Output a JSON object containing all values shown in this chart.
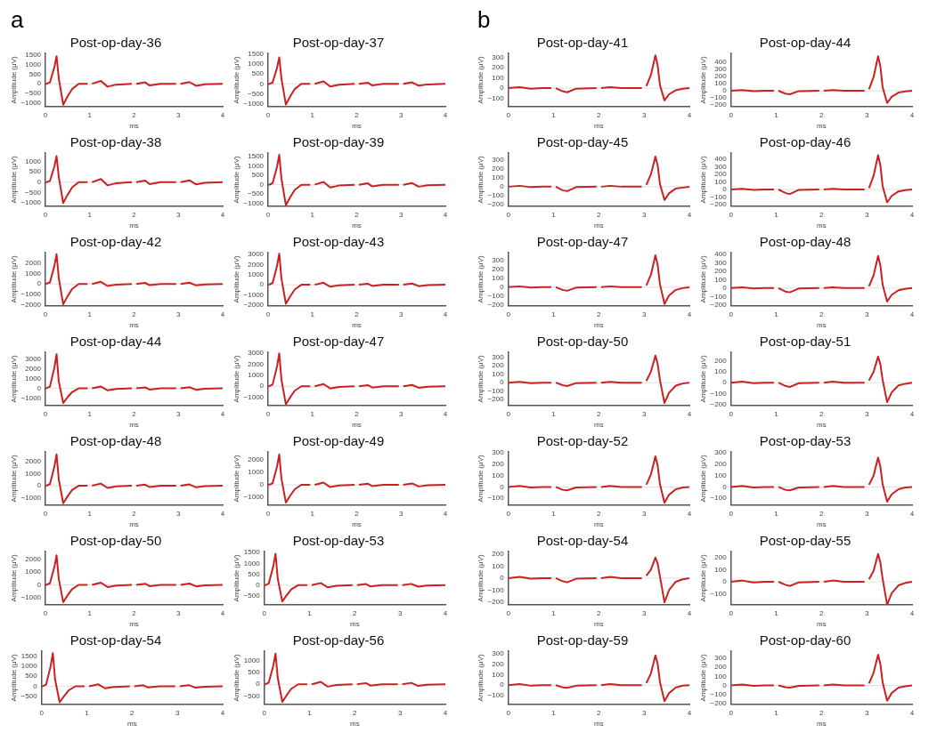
{
  "chart_data": [
    {
      "type": "line",
      "title": "Post-op-day-36",
      "annotations": [
        "a"
      ],
      "xlabel": "ms",
      "ylabel": "Amplitude (μV)",
      "color": "#cc2020",
      "xlim": [
        0,
        4
      ],
      "xticks": [
        0,
        1,
        2,
        3,
        4
      ],
      "ylim": [
        -1200,
        1600
      ],
      "yticks": [
        -1000,
        -500,
        0,
        500,
        1000,
        1500
      ],
      "ref_lines": [
        {
          "axis": "y",
          "value": 0,
          "color": "#e0e0e0"
        }
      ],
      "grid": false,
      "x": [
        0,
        0.1,
        0.2,
        0.25,
        0.3,
        0.4,
        0.5,
        0.6,
        0.75,
        0.95,
        1,
        1.05,
        1.25,
        1.4,
        1.6,
        1.95,
        2,
        2.05,
        2.25,
        2.35,
        2.6,
        2.95,
        3,
        3.05,
        3.25,
        3.4,
        3.6,
        4
      ],
      "values": [
        -20,
        70,
        870,
        1450,
        290,
        -1100,
        -660,
        -280,
        0,
        0,
        null,
        0,
        150,
        -150,
        -45,
        0,
        null,
        0,
        75,
        -90,
        0,
        0,
        null,
        0,
        90,
        -105,
        -30,
        0
      ]
    },
    {
      "type": "line",
      "title": "Post-op-day-37",
      "xlabel": "ms",
      "ylabel": "Amplitude (μV)",
      "color": "#cc2020",
      "xlim": [
        0,
        4
      ],
      "xticks": [
        0,
        1,
        2,
        3,
        4
      ],
      "ylim": [
        -1150,
        1550
      ],
      "yticks": [
        -1000,
        -500,
        0,
        500,
        1000,
        1500
      ],
      "ref_lines": [
        {
          "axis": "y",
          "value": 0,
          "color": "#e0e0e0"
        }
      ],
      "grid": false,
      "x": [
        0,
        0.1,
        0.2,
        0.25,
        0.3,
        0.4,
        0.5,
        0.6,
        0.75,
        0.95,
        1,
        1.05,
        1.25,
        1.4,
        1.6,
        1.95,
        2,
        2.05,
        2.25,
        2.35,
        2.6,
        2.95,
        3,
        3.05,
        3.25,
        3.4,
        3.6,
        4
      ],
      "values": [
        -20,
        70,
        810,
        1350,
        270,
        -1050,
        -630,
        -260,
        0,
        0,
        null,
        0,
        130,
        -130,
        -40,
        0,
        null,
        0,
        65,
        -80,
        0,
        0,
        null,
        0,
        80,
        -90,
        -25,
        0
      ]
    },
    {
      "type": "line",
      "title": "Post-op-day-38",
      "xlabel": "ms",
      "ylabel": "Amplitude (μV)",
      "color": "#cc2020",
      "xlim": [
        0,
        4
      ],
      "xticks": [
        0,
        1,
        2,
        3,
        4
      ],
      "ylim": [
        -1150,
        1400
      ],
      "yticks": [
        -1000,
        -500,
        0,
        500,
        1000
      ],
      "ref_lines": [
        {
          "axis": "y",
          "value": 0,
          "color": "#e0e0e0"
        }
      ],
      "grid": false,
      "x": [
        0,
        0.1,
        0.2,
        0.25,
        0.3,
        0.4,
        0.5,
        0.6,
        0.75,
        0.95,
        1,
        1.05,
        1.25,
        1.4,
        1.6,
        1.95,
        2,
        2.05,
        2.25,
        2.35,
        2.6,
        2.95,
        3,
        3.05,
        3.25,
        3.4,
        3.6,
        4
      ],
      "values": [
        -20,
        60,
        750,
        1250,
        250,
        -1000,
        -600,
        -250,
        0,
        0,
        null,
        0,
        150,
        -150,
        -45,
        0,
        null,
        0,
        75,
        -90,
        0,
        0,
        null,
        0,
        90,
        -105,
        -30,
        0
      ]
    },
    {
      "type": "line",
      "title": "Post-op-day-39",
      "xlabel": "ms",
      "ylabel": "Amplitude (μV)",
      "color": "#cc2020",
      "xlim": [
        0,
        4
      ],
      "xticks": [
        0,
        1,
        2,
        3,
        4
      ],
      "ylim": [
        -1150,
        1700
      ],
      "yticks": [
        -1000,
        -500,
        0,
        500,
        1000,
        1500
      ],
      "ref_lines": [
        {
          "axis": "y",
          "value": 0,
          "color": "#e0e0e0"
        }
      ],
      "grid": false,
      "x": [
        0,
        0.1,
        0.2,
        0.25,
        0.3,
        0.4,
        0.5,
        0.6,
        0.75,
        0.95,
        1,
        1.05,
        1.25,
        1.4,
        1.6,
        1.95,
        2,
        2.05,
        2.25,
        2.35,
        2.6,
        2.95,
        3,
        3.05,
        3.25,
        3.4,
        3.6,
        4
      ],
      "values": [
        -20,
        80,
        960,
        1600,
        320,
        -1100,
        -660,
        -280,
        0,
        0,
        null,
        0,
        150,
        -150,
        -45,
        0,
        null,
        0,
        75,
        -90,
        0,
        0,
        null,
        0,
        90,
        -105,
        -30,
        0
      ]
    },
    {
      "type": "line",
      "title": "Post-op-day-42",
      "xlabel": "ms",
      "ylabel": "Amplitude (μV)",
      "color": "#cc2020",
      "xlim": [
        0,
        4
      ],
      "xticks": [
        0,
        1,
        2,
        3,
        4
      ],
      "ylim": [
        -2100,
        3000
      ],
      "yticks": [
        -2000,
        -1000,
        0,
        1000,
        2000
      ],
      "ref_lines": [
        {
          "axis": "y",
          "value": 0,
          "color": "#e0e0e0"
        }
      ],
      "grid": false,
      "x": [
        0,
        0.1,
        0.2,
        0.25,
        0.3,
        0.4,
        0.5,
        0.6,
        0.75,
        0.95,
        1,
        1.05,
        1.25,
        1.4,
        1.6,
        1.95,
        2,
        2.05,
        2.25,
        2.35,
        2.6,
        2.95,
        3,
        3.05,
        3.25,
        3.4,
        3.6,
        4
      ],
      "values": [
        -20,
        140,
        1710,
        2850,
        570,
        -1950,
        -1170,
        -490,
        0,
        0,
        null,
        0,
        200,
        -200,
        -60,
        0,
        null,
        0,
        100,
        -120,
        0,
        0,
        null,
        0,
        120,
        -140,
        -40,
        0
      ]
    },
    {
      "type": "line",
      "title": "Post-op-day-43",
      "xlabel": "ms",
      "ylabel": "Amplitude (μV)",
      "color": "#cc2020",
      "xlim": [
        0,
        4
      ],
      "xticks": [
        0,
        1,
        2,
        3,
        4
      ],
      "ylim": [
        -2100,
        3200
      ],
      "yticks": [
        -2000,
        -1000,
        0,
        1000,
        2000,
        3000
      ],
      "ref_lines": [
        {
          "axis": "y",
          "value": 0,
          "color": "#e0e0e0"
        }
      ],
      "grid": false,
      "x": [
        0,
        0.1,
        0.2,
        0.25,
        0.3,
        0.4,
        0.5,
        0.6,
        0.75,
        0.95,
        1,
        1.05,
        1.25,
        1.4,
        1.6,
        1.95,
        2,
        2.05,
        2.25,
        2.35,
        2.6,
        2.95,
        3,
        3.05,
        3.25,
        3.4,
        3.6,
        4
      ],
      "values": [
        -20,
        160,
        1860,
        3100,
        620,
        -1900,
        -1140,
        -480,
        0,
        0,
        null,
        0,
        200,
        -200,
        -60,
        0,
        null,
        0,
        100,
        -120,
        0,
        0,
        null,
        0,
        120,
        -140,
        -40,
        0
      ]
    },
    {
      "type": "line",
      "title": "Post-op-day-44",
      "xlabel": "ms",
      "ylabel": "Amplitude (μV)",
      "color": "#cc2020",
      "xlim": [
        0,
        4
      ],
      "xticks": [
        0,
        1,
        2,
        3,
        4
      ],
      "ylim": [
        -1750,
        3700
      ],
      "yticks": [
        -1000,
        0,
        1000,
        2000,
        3000
      ],
      "ref_lines": [
        {
          "axis": "y",
          "value": 0,
          "color": "#e0e0e0"
        }
      ],
      "grid": false,
      "x": [
        0,
        0.1,
        0.2,
        0.25,
        0.3,
        0.4,
        0.5,
        0.6,
        0.75,
        0.95,
        1,
        1.05,
        1.25,
        1.4,
        1.6,
        1.95,
        2,
        2.05,
        2.25,
        2.35,
        2.6,
        2.95,
        3,
        3.05,
        3.25,
        3.4,
        3.6,
        4
      ],
      "values": [
        -20,
        180,
        2100,
        3500,
        700,
        -1500,
        -900,
        -380,
        0,
        0,
        null,
        0,
        200,
        -200,
        -60,
        0,
        null,
        0,
        100,
        -120,
        0,
        0,
        null,
        0,
        120,
        -140,
        -40,
        0
      ]
    },
    {
      "type": "line",
      "title": "Post-op-day-47",
      "xlabel": "ms",
      "ylabel": "Amplitude (μV)",
      "color": "#cc2020",
      "xlim": [
        0,
        4
      ],
      "xticks": [
        0,
        1,
        2,
        3,
        4
      ],
      "ylim": [
        -1750,
        3100
      ],
      "yticks": [
        -1000,
        0,
        1000,
        2000,
        3000
      ],
      "ref_lines": [
        {
          "axis": "y",
          "value": 0,
          "color": "#e0e0e0"
        }
      ],
      "grid": false,
      "x": [
        0,
        0.1,
        0.2,
        0.25,
        0.3,
        0.4,
        0.5,
        0.6,
        0.75,
        0.95,
        1,
        1.05,
        1.25,
        1.4,
        1.6,
        1.95,
        2,
        2.05,
        2.25,
        2.35,
        2.6,
        2.95,
        3,
        3.05,
        3.25,
        3.4,
        3.6,
        4
      ],
      "values": [
        -20,
        150,
        1800,
        3000,
        600,
        -1650,
        -990,
        -410,
        0,
        0,
        null,
        0,
        200,
        -200,
        -60,
        0,
        null,
        0,
        100,
        -120,
        0,
        0,
        null,
        0,
        120,
        -140,
        -40,
        0
      ]
    },
    {
      "type": "line",
      "title": "Post-op-day-48",
      "xlabel": "ms",
      "ylabel": "Amplitude (μV)",
      "color": "#cc2020",
      "xlim": [
        0,
        4
      ],
      "xticks": [
        0,
        1,
        2,
        3,
        4
      ],
      "ylim": [
        -1600,
        2800
      ],
      "yticks": [
        -1000,
        0,
        1000,
        2000
      ],
      "ref_lines": [
        {
          "axis": "y",
          "value": 0,
          "color": "#e0e0e0"
        }
      ],
      "grid": false,
      "x": [
        0,
        0.1,
        0.2,
        0.25,
        0.3,
        0.4,
        0.5,
        0.6,
        0.75,
        0.95,
        1,
        1.05,
        1.25,
        1.4,
        1.6,
        1.95,
        2,
        2.05,
        2.25,
        2.35,
        2.6,
        2.95,
        3,
        3.05,
        3.25,
        3.4,
        3.6,
        4
      ],
      "values": [
        -20,
        130,
        1560,
        2600,
        520,
        -1450,
        -870,
        -360,
        0,
        0,
        null,
        0,
        180,
        -180,
        -50,
        0,
        null,
        0,
        90,
        -110,
        0,
        0,
        null,
        0,
        110,
        -130,
        -35,
        0
      ]
    },
    {
      "type": "line",
      "title": "Post-op-day-49",
      "xlabel": "ms",
      "ylabel": "Amplitude (μV)",
      "color": "#cc2020",
      "xlim": [
        0,
        4
      ],
      "xticks": [
        0,
        1,
        2,
        3,
        4
      ],
      "ylim": [
        -1600,
        2600
      ],
      "yticks": [
        -1000,
        0,
        1000,
        2000
      ],
      "ref_lines": [
        {
          "axis": "y",
          "value": 0,
          "color": "#e0e0e0"
        }
      ],
      "grid": false,
      "x": [
        0,
        0.1,
        0.2,
        0.25,
        0.3,
        0.4,
        0.5,
        0.6,
        0.75,
        0.95,
        1,
        1.05,
        1.25,
        1.4,
        1.6,
        1.95,
        2,
        2.05,
        2.25,
        2.35,
        2.6,
        2.95,
        3,
        3.05,
        3.25,
        3.4,
        3.6,
        4
      ],
      "values": [
        -20,
        120,
        1440,
        2400,
        480,
        -1400,
        -840,
        -350,
        0,
        0,
        null,
        0,
        180,
        -180,
        -50,
        0,
        null,
        0,
        90,
        -110,
        0,
        0,
        null,
        0,
        110,
        -130,
        -35,
        0
      ]
    },
    {
      "type": "line",
      "title": "Post-op-day-50",
      "xlabel": "ms",
      "ylabel": "Amplitude (μV)",
      "color": "#cc2020",
      "xlim": [
        0,
        4
      ],
      "xticks": [
        0,
        1,
        2,
        3,
        4
      ],
      "ylim": [
        -1550,
        2600
      ],
      "yticks": [
        -1000,
        0,
        1000,
        2000
      ],
      "ref_lines": [
        {
          "axis": "y",
          "value": 0,
          "color": "#e0e0e0"
        }
      ],
      "grid": false,
      "x": [
        0,
        0.1,
        0.2,
        0.25,
        0.3,
        0.4,
        0.5,
        0.6,
        0.75,
        0.95,
        1,
        1.05,
        1.25,
        1.4,
        1.6,
        1.95,
        2,
        2.05,
        2.25,
        2.35,
        2.6,
        2.95,
        3,
        3.05,
        3.25,
        3.4,
        3.6,
        4
      ],
      "values": [
        -20,
        120,
        1380,
        2300,
        460,
        -1350,
        -810,
        -340,
        0,
        0,
        null,
        0,
        170,
        -170,
        -50,
        0,
        null,
        0,
        85,
        -100,
        0,
        0,
        null,
        0,
        100,
        -120,
        -35,
        0
      ]
    },
    {
      "type": "line",
      "title": "Post-op-day-53",
      "xlabel": "ms",
      "ylabel": "Amplitude (μV)",
      "color": "#cc2020",
      "xlim": [
        0,
        4
      ],
      "xticks": [
        0,
        1,
        2,
        3,
        4
      ],
      "ylim": [
        -900,
        1550
      ],
      "yticks": [
        -500,
        0,
        500,
        1000,
        1500
      ],
      "ref_lines": [
        {
          "axis": "y",
          "value": 0,
          "color": "#e0e0e0"
        }
      ],
      "grid": false,
      "x": [
        0,
        0.1,
        0.2,
        0.25,
        0.3,
        0.4,
        0.5,
        0.6,
        0.75,
        0.95,
        1,
        1.05,
        1.25,
        1.4,
        1.6,
        1.95,
        2,
        2.05,
        2.25,
        2.35,
        2.6,
        2.95,
        3,
        3.05,
        3.25,
        3.4,
        3.6,
        4
      ],
      "values": [
        -20,
        70,
        870,
        1450,
        290,
        -750,
        -450,
        -190,
        0,
        0,
        null,
        0,
        100,
        -100,
        -30,
        0,
        null,
        0,
        50,
        -60,
        0,
        0,
        null,
        0,
        60,
        -70,
        -20,
        0
      ]
    },
    {
      "type": "line",
      "title": "Post-op-day-54",
      "xlabel": "ms",
      "ylabel": "Amplitude (μV)",
      "color": "#cc2020",
      "xlim": [
        0,
        4
      ],
      "xticks": [
        0,
        1,
        2,
        3,
        4
      ],
      "ylim": [
        -900,
        1750
      ],
      "yticks": [
        -500,
        0,
        500,
        1000,
        1500
      ],
      "ref_lines": [
        {
          "axis": "y",
          "value": 0,
          "color": "#e0e0e0"
        }
      ],
      "grid": false,
      "x": [
        0,
        0.1,
        0.2,
        0.25,
        0.3,
        0.4,
        0.5,
        0.6,
        0.75,
        0.95,
        1,
        1.05,
        1.25,
        1.4,
        1.6,
        1.95,
        2,
        2.05,
        2.25,
        2.35,
        2.6,
        2.95,
        3,
        3.05,
        3.25,
        3.4,
        3.6,
        4
      ],
      "values": [
        -20,
        80,
        990,
        1650,
        330,
        -800,
        -480,
        -200,
        0,
        0,
        null,
        0,
        100,
        -100,
        -30,
        0,
        null,
        0,
        50,
        -60,
        0,
        0,
        null,
        0,
        60,
        -70,
        -20,
        0
      ]
    },
    {
      "type": "line",
      "title": "Post-op-day-56",
      "xlabel": "ms",
      "ylabel": "Amplitude (μV)",
      "color": "#cc2020",
      "xlim": [
        0,
        4
      ],
      "xticks": [
        0,
        1,
        2,
        3,
        4
      ],
      "ylim": [
        -850,
        1400
      ],
      "yticks": [
        -500,
        0,
        500,
        1000
      ],
      "ref_lines": [
        {
          "axis": "y",
          "value": 0,
          "color": "#e0e0e0"
        }
      ],
      "grid": false,
      "x": [
        0,
        0.1,
        0.2,
        0.25,
        0.3,
        0.4,
        0.5,
        0.6,
        0.75,
        0.95,
        1,
        1.05,
        1.25,
        1.4,
        1.6,
        1.95,
        2,
        2.05,
        2.25,
        2.35,
        2.6,
        2.95,
        3,
        3.05,
        3.25,
        3.4,
        3.6,
        4
      ],
      "values": [
        -20,
        70,
        780,
        1300,
        260,
        -750,
        -450,
        -190,
        0,
        0,
        null,
        0,
        100,
        -100,
        -30,
        0,
        null,
        0,
        50,
        -60,
        0,
        0,
        null,
        0,
        60,
        -70,
        -20,
        0
      ]
    },
    {
      "type": "line",
      "title": "Post-op-day-41",
      "annotations": [
        "b"
      ],
      "xlabel": "ms",
      "ylabel": "Amplitude (μV)",
      "color": "#cc2020",
      "xlim": [
        0,
        4
      ],
      "xticks": [
        0,
        1,
        2,
        3,
        4
      ],
      "ylim": [
        -180,
        340
      ],
      "yticks": [
        -100,
        0,
        100,
        200,
        300
      ],
      "ref_lines": [
        {
          "axis": "y",
          "value": 0,
          "color": "#e0e0e0"
        }
      ],
      "grid": false,
      "x": [
        0,
        0.25,
        0.5,
        0.75,
        0.95,
        1,
        1.05,
        1.2,
        1.3,
        1.5,
        1.95,
        2,
        2.05,
        2.25,
        2.5,
        2.95,
        3,
        3.05,
        3.15,
        3.25,
        3.3,
        3.35,
        3.45,
        3.55,
        3.7,
        3.85,
        4
      ],
      "values": [
        0,
        10,
        -5,
        0,
        0,
        null,
        0,
        -30,
        -40,
        -5,
        0,
        null,
        0,
        10,
        0,
        0,
        null,
        20,
        130,
        320,
        220,
        30,
        -120,
        -60,
        -20,
        -5,
        0
      ]
    },
    {
      "type": "line",
      "title": "Post-op-day-44",
      "xlabel": "ms",
      "ylabel": "Amplitude (μV)",
      "color": "#cc2020",
      "xlim": [
        0,
        4
      ],
      "xticks": [
        0,
        1,
        2,
        3,
        4
      ],
      "ylim": [
        -220,
        520
      ],
      "yticks": [
        -200,
        -100,
        0,
        100,
        200,
        300,
        400
      ],
      "ref_lines": [
        {
          "axis": "y",
          "value": 0,
          "color": "#e0e0e0"
        }
      ],
      "grid": false,
      "x": [
        0,
        0.25,
        0.5,
        0.75,
        0.95,
        1,
        1.05,
        1.2,
        1.3,
        1.5,
        1.95,
        2,
        2.05,
        2.25,
        2.5,
        2.95,
        3,
        3.05,
        3.15,
        3.25,
        3.3,
        3.35,
        3.45,
        3.55,
        3.7,
        3.85,
        4
      ],
      "values": [
        0,
        10,
        -5,
        0,
        0,
        null,
        0,
        -40,
        -50,
        -5,
        0,
        null,
        0,
        10,
        0,
        0,
        null,
        20,
        190,
        480,
        340,
        50,
        -170,
        -85,
        -25,
        -10,
        0
      ]
    },
    {
      "type": "line",
      "title": "Post-op-day-45",
      "xlabel": "ms",
      "ylabel": "Amplitude (μV)",
      "color": "#cc2020",
      "xlim": [
        0,
        4
      ],
      "xticks": [
        0,
        1,
        2,
        3,
        4
      ],
      "ylim": [
        -220,
        380
      ],
      "yticks": [
        -200,
        -100,
        0,
        100,
        200,
        300
      ],
      "ref_lines": [
        {
          "axis": "y",
          "value": 0,
          "color": "#e0e0e0"
        }
      ],
      "grid": false,
      "x": [
        0,
        0.25,
        0.5,
        0.75,
        0.95,
        1,
        1.05,
        1.2,
        1.3,
        1.5,
        1.95,
        2,
        2.05,
        2.25,
        2.5,
        2.95,
        3,
        3.05,
        3.15,
        3.25,
        3.3,
        3.35,
        3.45,
        3.55,
        3.7,
        3.85,
        4
      ],
      "values": [
        0,
        10,
        -5,
        0,
        0,
        null,
        0,
        -40,
        -50,
        -5,
        0,
        null,
        0,
        10,
        0,
        0,
        null,
        20,
        140,
        340,
        240,
        30,
        -150,
        -75,
        -20,
        -10,
        0
      ]
    },
    {
      "type": "line",
      "title": "Post-op-day-46",
      "xlabel": "ms",
      "ylabel": "Amplitude (μV)",
      "color": "#cc2020",
      "xlim": [
        0,
        4
      ],
      "xticks": [
        0,
        1,
        2,
        3,
        4
      ],
      "ylim": [
        -220,
        480
      ],
      "yticks": [
        -200,
        -100,
        0,
        100,
        200,
        300,
        400
      ],
      "ref_lines": [
        {
          "axis": "y",
          "value": 0,
          "color": "#e0e0e0"
        }
      ],
      "grid": false,
      "x": [
        0,
        0.25,
        0.5,
        0.75,
        0.95,
        1,
        1.05,
        1.2,
        1.3,
        1.5,
        1.95,
        2,
        2.05,
        2.25,
        2.5,
        2.95,
        3,
        3.05,
        3.15,
        3.25,
        3.3,
        3.35,
        3.45,
        3.55,
        3.7,
        3.85,
        4
      ],
      "values": [
        0,
        10,
        -5,
        0,
        0,
        null,
        0,
        -45,
        -60,
        -5,
        0,
        null,
        0,
        10,
        0,
        0,
        null,
        20,
        180,
        450,
        320,
        45,
        -170,
        -85,
        -25,
        -10,
        0
      ]
    },
    {
      "type": "line",
      "title": "Post-op-day-47",
      "xlabel": "ms",
      "ylabel": "Amplitude (μV)",
      "color": "#cc2020",
      "xlim": [
        0,
        4
      ],
      "xticks": [
        0,
        1,
        2,
        3,
        4
      ],
      "ylim": [
        -210,
        390
      ],
      "yticks": [
        -200,
        -100,
        0,
        100,
        200,
        300
      ],
      "ref_lines": [
        {
          "axis": "y",
          "value": 0,
          "color": "#e0e0e0"
        }
      ],
      "grid": false,
      "x": [
        0,
        0.25,
        0.5,
        0.75,
        0.95,
        1,
        1.05,
        1.2,
        1.3,
        1.5,
        1.95,
        2,
        2.05,
        2.25,
        2.5,
        2.95,
        3,
        3.05,
        3.15,
        3.25,
        3.3,
        3.35,
        3.45,
        3.55,
        3.7,
        3.85,
        4
      ],
      "values": [
        0,
        10,
        -5,
        0,
        0,
        null,
        0,
        -30,
        -40,
        -5,
        0,
        null,
        0,
        10,
        0,
        0,
        null,
        20,
        140,
        360,
        250,
        35,
        -190,
        -95,
        -30,
        -10,
        0
      ]
    },
    {
      "type": "line",
      "title": "Post-op-day-48",
      "xlabel": "ms",
      "ylabel": "Amplitude (μV)",
      "color": "#cc2020",
      "xlim": [
        0,
        4
      ],
      "xticks": [
        0,
        1,
        2,
        3,
        4
      ],
      "ylim": [
        -210,
        420
      ],
      "yticks": [
        -200,
        -100,
        0,
        100,
        200,
        300,
        400
      ],
      "ref_lines": [
        {
          "axis": "y",
          "value": 0,
          "color": "#e0e0e0"
        }
      ],
      "grid": false,
      "x": [
        0,
        0.25,
        0.5,
        0.75,
        0.95,
        1,
        1.05,
        1.2,
        1.3,
        1.5,
        1.95,
        2,
        2.05,
        2.25,
        2.5,
        2.95,
        3,
        3.05,
        3.15,
        3.25,
        3.3,
        3.35,
        3.45,
        3.55,
        3.7,
        3.85,
        4
      ],
      "values": [
        0,
        10,
        -5,
        0,
        0,
        null,
        0,
        -40,
        -50,
        -5,
        0,
        null,
        0,
        10,
        0,
        0,
        null,
        20,
        150,
        380,
        270,
        40,
        -160,
        -80,
        -25,
        -10,
        0
      ]
    },
    {
      "type": "line",
      "title": "Post-op-day-50",
      "xlabel": "ms",
      "ylabel": "Amplitude (μV)",
      "color": "#cc2020",
      "xlim": [
        0,
        4
      ],
      "xticks": [
        0,
        1,
        2,
        3,
        4
      ],
      "ylim": [
        -270,
        360
      ],
      "yticks": [
        -200,
        -100,
        0,
        100,
        200,
        300
      ],
      "ref_lines": [
        {
          "axis": "y",
          "value": 0,
          "color": "#e0e0e0"
        }
      ],
      "grid": false,
      "x": [
        0,
        0.25,
        0.5,
        0.75,
        0.95,
        1,
        1.05,
        1.2,
        1.3,
        1.5,
        1.95,
        2,
        2.05,
        2.25,
        2.5,
        2.95,
        3,
        3.05,
        3.15,
        3.25,
        3.3,
        3.35,
        3.45,
        3.55,
        3.7,
        3.85,
        4
      ],
      "values": [
        0,
        10,
        -5,
        0,
        0,
        null,
        0,
        -30,
        -40,
        -5,
        0,
        null,
        0,
        10,
        0,
        0,
        null,
        20,
        130,
        320,
        220,
        30,
        -240,
        -120,
        -35,
        -10,
        0
      ]
    },
    {
      "type": "line",
      "title": "Post-op-day-51",
      "xlabel": "ms",
      "ylabel": "Amplitude (μV)",
      "color": "#cc2020",
      "xlim": [
        0,
        4
      ],
      "xticks": [
        0,
        1,
        2,
        3,
        4
      ],
      "ylim": [
        -210,
        280
      ],
      "yticks": [
        -200,
        -100,
        0,
        100,
        200
      ],
      "ref_lines": [
        {
          "axis": "y",
          "value": 0,
          "color": "#e0e0e0"
        }
      ],
      "grid": false,
      "x": [
        0,
        0.25,
        0.5,
        0.75,
        0.95,
        1,
        1.05,
        1.2,
        1.3,
        1.5,
        1.95,
        2,
        2.05,
        2.25,
        2.5,
        2.95,
        3,
        3.05,
        3.15,
        3.25,
        3.3,
        3.35,
        3.45,
        3.55,
        3.7,
        3.85,
        4
      ],
      "values": [
        0,
        10,
        -5,
        0,
        0,
        null,
        0,
        -30,
        -40,
        -5,
        0,
        null,
        0,
        10,
        0,
        0,
        null,
        20,
        100,
        240,
        170,
        25,
        -180,
        -90,
        -25,
        -10,
        0
      ]
    },
    {
      "type": "line",
      "title": "Post-op-day-52",
      "xlabel": "ms",
      "ylabel": "Amplitude (μV)",
      "color": "#cc2020",
      "xlim": [
        0,
        4
      ],
      "xticks": [
        0,
        1,
        2,
        3,
        4
      ],
      "ylim": [
        -160,
        310
      ],
      "yticks": [
        -100,
        0,
        100,
        200,
        300
      ],
      "ref_lines": [
        {
          "axis": "y",
          "value": 0,
          "color": "#e0e0e0"
        }
      ],
      "grid": false,
      "x": [
        0,
        0.25,
        0.5,
        0.75,
        0.95,
        1,
        1.05,
        1.2,
        1.3,
        1.5,
        1.95,
        2,
        2.05,
        2.25,
        2.5,
        2.95,
        3,
        3.05,
        3.15,
        3.25,
        3.3,
        3.35,
        3.45,
        3.55,
        3.7,
        3.85,
        4
      ],
      "values": [
        0,
        10,
        -5,
        0,
        0,
        null,
        0,
        -25,
        -30,
        -5,
        0,
        null,
        0,
        10,
        0,
        0,
        null,
        20,
        110,
        270,
        190,
        25,
        -140,
        -70,
        -20,
        -5,
        0
      ]
    },
    {
      "type": "line",
      "title": "Post-op-day-53",
      "xlabel": "ms",
      "ylabel": "Amplitude (μV)",
      "color": "#cc2020",
      "xlim": [
        0,
        4
      ],
      "xticks": [
        0,
        1,
        2,
        3,
        4
      ],
      "ylim": [
        -160,
        310
      ],
      "yticks": [
        -100,
        0,
        100,
        200,
        300
      ],
      "ref_lines": [
        {
          "axis": "y",
          "value": 0,
          "color": "#e0e0e0"
        }
      ],
      "grid": false,
      "x": [
        0,
        0.25,
        0.5,
        0.75,
        0.95,
        1,
        1.05,
        1.2,
        1.3,
        1.5,
        1.95,
        2,
        2.05,
        2.25,
        2.5,
        2.95,
        3,
        3.05,
        3.15,
        3.25,
        3.3,
        3.35,
        3.45,
        3.55,
        3.7,
        3.85,
        4
      ],
      "values": [
        0,
        10,
        -5,
        0,
        0,
        null,
        0,
        -25,
        -30,
        -5,
        0,
        null,
        0,
        10,
        0,
        0,
        null,
        20,
        100,
        260,
        180,
        25,
        -130,
        -65,
        -20,
        -5,
        0
      ]
    },
    {
      "type": "line",
      "title": "Post-op-day-54",
      "xlabel": "ms",
      "ylabel": "Amplitude (μV)",
      "color": "#cc2020",
      "xlim": [
        0,
        4
      ],
      "xticks": [
        0,
        1,
        2,
        3,
        4
      ],
      "ylim": [
        -220,
        220
      ],
      "yticks": [
        -200,
        -100,
        0,
        100,
        200
      ],
      "ref_lines": [
        {
          "axis": "y",
          "value": 0,
          "color": "#e0e0e0"
        }
      ],
      "grid": false,
      "x": [
        0,
        0.25,
        0.5,
        0.75,
        0.95,
        1,
        1.05,
        1.2,
        1.3,
        1.5,
        1.95,
        2,
        2.05,
        2.25,
        2.5,
        2.95,
        3,
        3.05,
        3.15,
        3.25,
        3.3,
        3.35,
        3.45,
        3.55,
        3.7,
        3.85,
        4
      ],
      "values": [
        0,
        10,
        -5,
        0,
        0,
        null,
        0,
        -25,
        -35,
        -5,
        0,
        null,
        0,
        10,
        0,
        0,
        null,
        20,
        70,
        170,
        120,
        15,
        -200,
        -100,
        -30,
        -10,
        0
      ]
    },
    {
      "type": "line",
      "title": "Post-op-day-55",
      "xlabel": "ms",
      "ylabel": "Amplitude (μV)",
      "color": "#cc2020",
      "xlim": [
        0,
        4
      ],
      "xticks": [
        0,
        1,
        2,
        3,
        4
      ],
      "ylim": [
        -190,
        250
      ],
      "yticks": [
        -100,
        0,
        100,
        200
      ],
      "ref_lines": [
        {
          "axis": "y",
          "value": 0,
          "color": "#e0e0e0"
        }
      ],
      "grid": false,
      "x": [
        0,
        0.25,
        0.5,
        0.75,
        0.95,
        1,
        1.05,
        1.2,
        1.3,
        1.5,
        1.95,
        2,
        2.05,
        2.25,
        2.5,
        2.95,
        3,
        3.05,
        3.15,
        3.25,
        3.3,
        3.35,
        3.45,
        3.55,
        3.7,
        3.85,
        4
      ],
      "values": [
        0,
        10,
        -5,
        0,
        0,
        null,
        0,
        -25,
        -35,
        -5,
        0,
        null,
        0,
        10,
        0,
        0,
        null,
        20,
        90,
        230,
        160,
        25,
        -190,
        -95,
        -30,
        -10,
        0
      ]
    },
    {
      "type": "line",
      "title": "Post-op-day-59",
      "xlabel": "ms",
      "ylabel": "Amplitude (μV)",
      "color": "#cc2020",
      "xlim": [
        0,
        4
      ],
      "xticks": [
        0,
        1,
        2,
        3,
        4
      ],
      "ylim": [
        -180,
        320
      ],
      "yticks": [
        -100,
        0,
        100,
        200,
        300
      ],
      "ref_lines": [
        {
          "axis": "y",
          "value": 0,
          "color": "#e0e0e0"
        }
      ],
      "grid": false,
      "x": [
        0,
        0.25,
        0.5,
        0.75,
        0.95,
        1,
        1.05,
        1.2,
        1.3,
        1.5,
        1.95,
        2,
        2.05,
        2.25,
        2.5,
        2.95,
        3,
        3.05,
        3.15,
        3.25,
        3.3,
        3.35,
        3.45,
        3.55,
        3.7,
        3.85,
        4
      ],
      "values": [
        0,
        10,
        -5,
        0,
        0,
        null,
        0,
        -20,
        -25,
        -5,
        0,
        null,
        0,
        10,
        0,
        0,
        null,
        20,
        110,
        280,
        200,
        30,
        -150,
        -75,
        -20,
        -5,
        0
      ]
    },
    {
      "type": "line",
      "title": "Post-op-day-60",
      "xlabel": "ms",
      "ylabel": "Amplitude (μV)",
      "color": "#cc2020",
      "xlim": [
        0,
        4
      ],
      "xticks": [
        0,
        1,
        2,
        3,
        4
      ],
      "ylim": [
        -210,
        380
      ],
      "yticks": [
        -200,
        -100,
        0,
        100,
        200,
        300
      ],
      "ref_lines": [
        {
          "axis": "y",
          "value": 0,
          "color": "#e0e0e0"
        }
      ],
      "grid": false,
      "x": [
        0,
        0.25,
        0.5,
        0.75,
        0.95,
        1,
        1.05,
        1.2,
        1.3,
        1.5,
        1.95,
        2,
        2.05,
        2.25,
        2.5,
        2.95,
        3,
        3.05,
        3.15,
        3.25,
        3.3,
        3.35,
        3.45,
        3.55,
        3.7,
        3.85,
        4
      ],
      "values": [
        0,
        10,
        -5,
        0,
        0,
        null,
        0,
        -20,
        -25,
        -5,
        0,
        null,
        0,
        10,
        0,
        0,
        null,
        20,
        140,
        340,
        240,
        35,
        -170,
        -85,
        -25,
        -10,
        0
      ]
    }
  ]
}
